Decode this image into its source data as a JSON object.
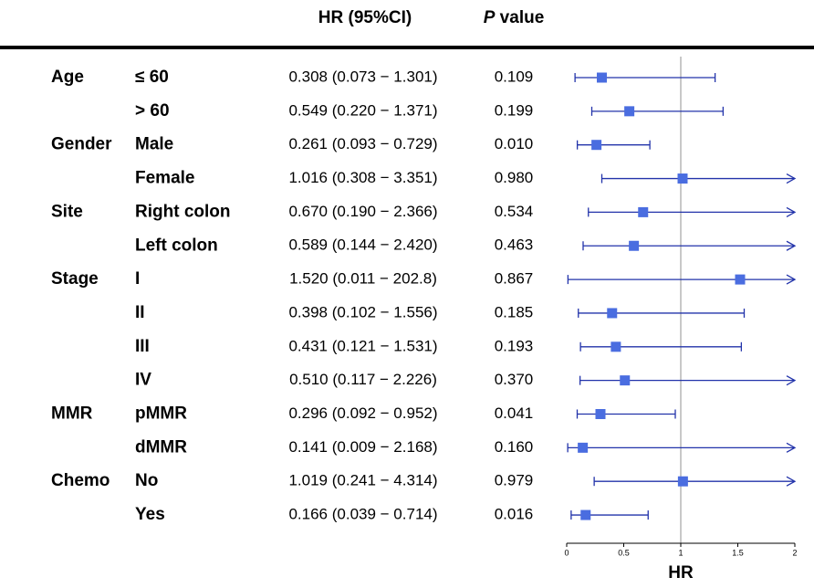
{
  "chart_data": {
    "type": "forest",
    "ci_header": "HR (95%CI)",
    "p_header": {
      "italic": "P",
      "rest": " value"
    },
    "xlabel": "HR",
    "groups": [
      "Age",
      null,
      "Gender",
      null,
      "Site",
      null,
      "Stage",
      null,
      null,
      null,
      "MMR",
      null,
      "Chemo",
      null
    ],
    "subgroups": [
      "≤ 60",
      "> 60",
      "Male",
      "Female",
      "Right colon",
      "Left colon",
      "I",
      "II",
      "III",
      "IV",
      "pMMR",
      "dMMR",
      "No",
      "Yes"
    ],
    "ci_labels": [
      "0.308 (0.073 − 1.301)",
      "0.549 (0.220 − 1.371)",
      "0.261 (0.093 − 0.729)",
      "1.016 (0.308 − 3.351)",
      "0.670 (0.190 − 2.366)",
      "0.589 (0.144 − 2.420)",
      "1.520 (0.011 − 202.8)",
      "0.398 (0.102 − 1.556)",
      "0.431 (0.121 − 1.531)",
      "0.510 (0.117 − 2.226)",
      "0.296 (0.092 − 0.952)",
      "0.141 (0.009 − 2.168)",
      "1.019 (0.241 − 4.314)",
      "0.166 (0.039 − 0.714)"
    ],
    "p_values": [
      "0.109",
      "0.199",
      "0.010",
      "0.980",
      "0.534",
      "0.463",
      "0.867",
      "0.185",
      "0.193",
      "0.370",
      "0.041",
      "0.160",
      "0.979",
      "0.016"
    ],
    "values": [
      0.308,
      0.549,
      0.261,
      1.016,
      0.67,
      0.589,
      1.52,
      0.398,
      0.431,
      0.51,
      0.296,
      0.141,
      1.019,
      0.166
    ],
    "lower": [
      0.073,
      0.22,
      0.093,
      0.308,
      0.19,
      0.144,
      0.011,
      0.102,
      0.121,
      0.117,
      0.092,
      0.009,
      0.241,
      0.039
    ],
    "upper": [
      1.301,
      1.371,
      0.729,
      3.351,
      2.366,
      2.42,
      202.8,
      1.556,
      1.531,
      2.226,
      0.952,
      2.168,
      4.314,
      0.714
    ],
    "reference": 1,
    "xlim": [
      0,
      2
    ],
    "xticks": [
      0,
      0.5,
      1,
      1.5,
      2
    ],
    "color": "#2233aa",
    "marker_color": "#4a6de0"
  }
}
